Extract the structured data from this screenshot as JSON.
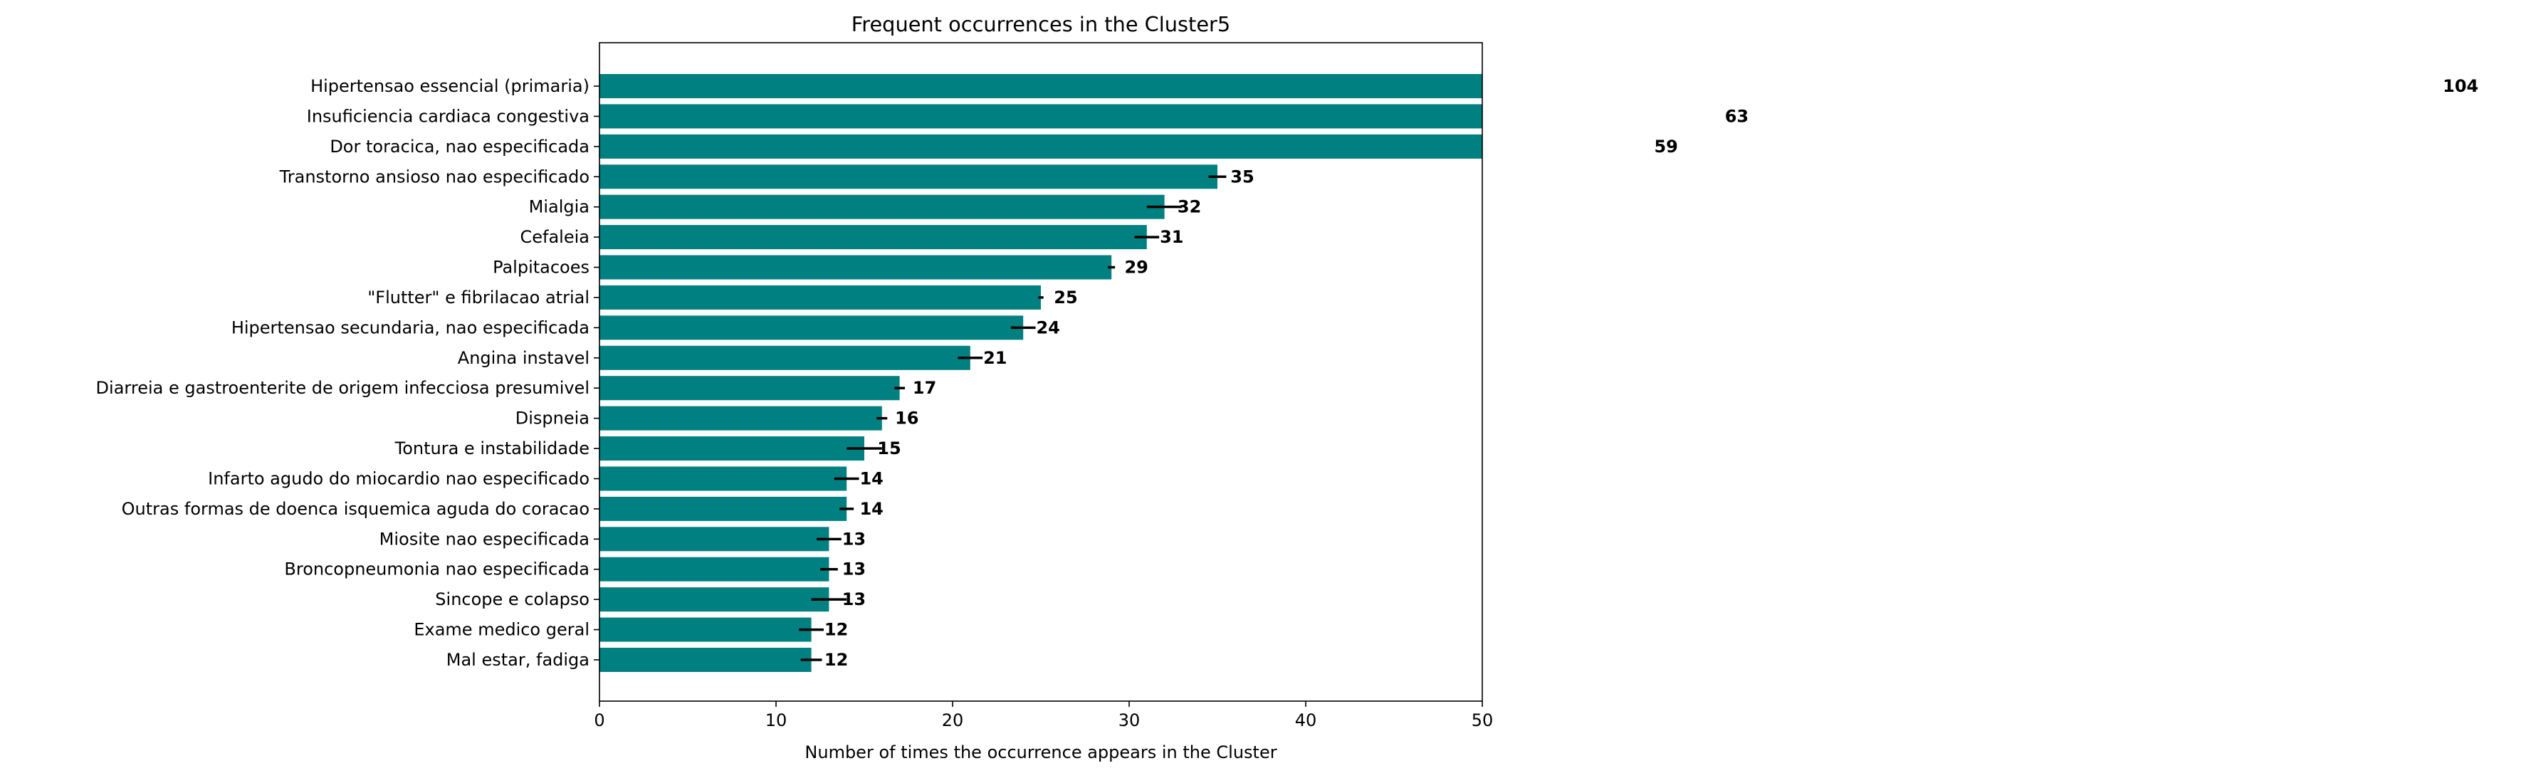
{
  "chart_data": {
    "type": "bar",
    "orientation": "horizontal",
    "title": "Frequent occurrences in the Cluster5",
    "xlabel": "Number of times the occurrence appears in the Cluster",
    "ylabel": "",
    "xlim": [
      0,
      50
    ],
    "xticks": [
      0,
      10,
      20,
      30,
      40,
      50
    ],
    "bar_color": "#008080",
    "categories": [
      "Hipertensao essencial (primaria)",
      "Insuficiencia cardiaca congestiva",
      "Dor toracica, nao especificada",
      "Transtorno ansioso nao especificado",
      "Mialgia",
      "Cefaleia",
      "Palpitacoes",
      "\"Flutter\" e fibrilacao atrial",
      "Hipertensao secundaria, nao especificada",
      "Angina instavel",
      "Diarreia e gastroenterite de origem infecciosa presumivel",
      "Dispneia",
      "Tontura e instabilidade",
      "Infarto agudo do miocardio nao especificado",
      "Outras formas de doenca isquemica aguda do coracao",
      "Miosite nao especificada",
      "Broncopneumonia nao especificada",
      "Sincope e colapso",
      "Exame medico geral",
      "Mal estar, fadiga"
    ],
    "values": [
      104,
      63,
      59,
      35,
      32,
      31,
      29,
      25,
      24,
      21,
      17,
      16,
      15,
      14,
      14,
      13,
      13,
      13,
      12,
      12
    ],
    "value_labels": [
      "104",
      "63",
      "59",
      "35",
      "32",
      "31",
      "29",
      "25",
      "24",
      "21",
      "17",
      "16",
      "15",
      "14",
      "14",
      "13",
      "13",
      "13",
      "12",
      "12"
    ],
    "errors": [
      0,
      0,
      0,
      0.5,
      1.0,
      0.7,
      0.2,
      0.15,
      0.7,
      0.7,
      0.3,
      0.3,
      1.0,
      0.7,
      0.4,
      0.7,
      0.5,
      1.0,
      0.7,
      0.6
    ],
    "grid": false,
    "legend": "none"
  }
}
